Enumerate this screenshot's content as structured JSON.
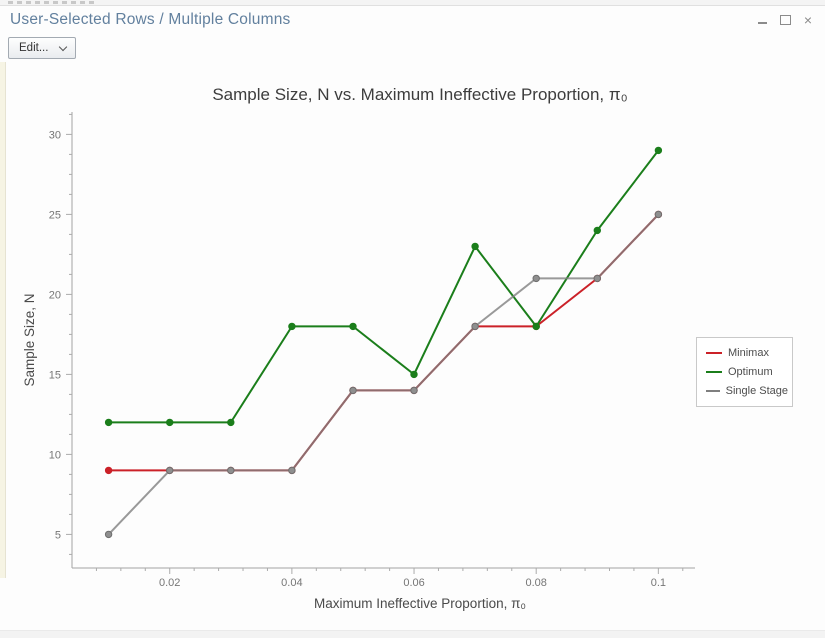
{
  "window": {
    "title": "User-Selected Rows / Multiple Columns",
    "controls": [
      "minimize-icon",
      "maximize-icon",
      "close-icon"
    ]
  },
  "toolbar": {
    "edit_label": "Edit...",
    "edit_chevron": "chevron-down-icon"
  },
  "chart_data": {
    "type": "line",
    "title": "Sample Size, N vs. Maximum Ineffective Proportion, π₀",
    "xlabel": "Maximum Ineffective Proportion, π₀",
    "ylabel": "Sample Size, N",
    "x": [
      0.01,
      0.02,
      0.03,
      0.04,
      0.05,
      0.06,
      0.07,
      0.08,
      0.09,
      0.1
    ],
    "series": [
      {
        "name": "Minimax",
        "color": "#cb2128",
        "opacity": 1,
        "values": [
          9,
          9,
          9,
          9,
          14,
          14,
          18,
          18,
          21,
          25
        ]
      },
      {
        "name": "Optimum",
        "color": "#1b7e1b",
        "opacity": 1,
        "values": [
          12,
          12,
          12,
          18,
          18,
          15,
          23,
          18,
          24,
          29
        ]
      },
      {
        "name": "Single Stage",
        "color": "#7f7f7f",
        "opacity": 0.8,
        "marker_fill": "#8f8f8f",
        "marker_stroke": "#6f6f6f",
        "values": [
          5,
          9,
          9,
          9,
          14,
          14,
          18,
          21,
          21,
          25
        ]
      }
    ],
    "x_ticks": [
      0.02,
      0.04,
      0.06,
      0.08,
      0.1
    ],
    "x_tick_labels": [
      "0.02",
      "0.04",
      "0.06",
      "0.08",
      "0.1"
    ],
    "y_ticks": [
      5,
      10,
      15,
      20,
      25,
      30
    ],
    "y_tick_labels": [
      "5",
      "10",
      "15",
      "20",
      "25",
      "30"
    ],
    "x_minor": {
      "start": 0.008,
      "step": 0.004,
      "end": 0.104
    },
    "y_minor": {
      "start": 3.75,
      "step": 1.25,
      "end": 31.25
    },
    "xlim": [
      0.004,
      0.106
    ],
    "ylim": [
      2.9,
      31.4
    ],
    "grid": false,
    "legend_position": "right",
    "legend": [
      "Minimax",
      "Optimum",
      "Single Stage"
    ]
  }
}
